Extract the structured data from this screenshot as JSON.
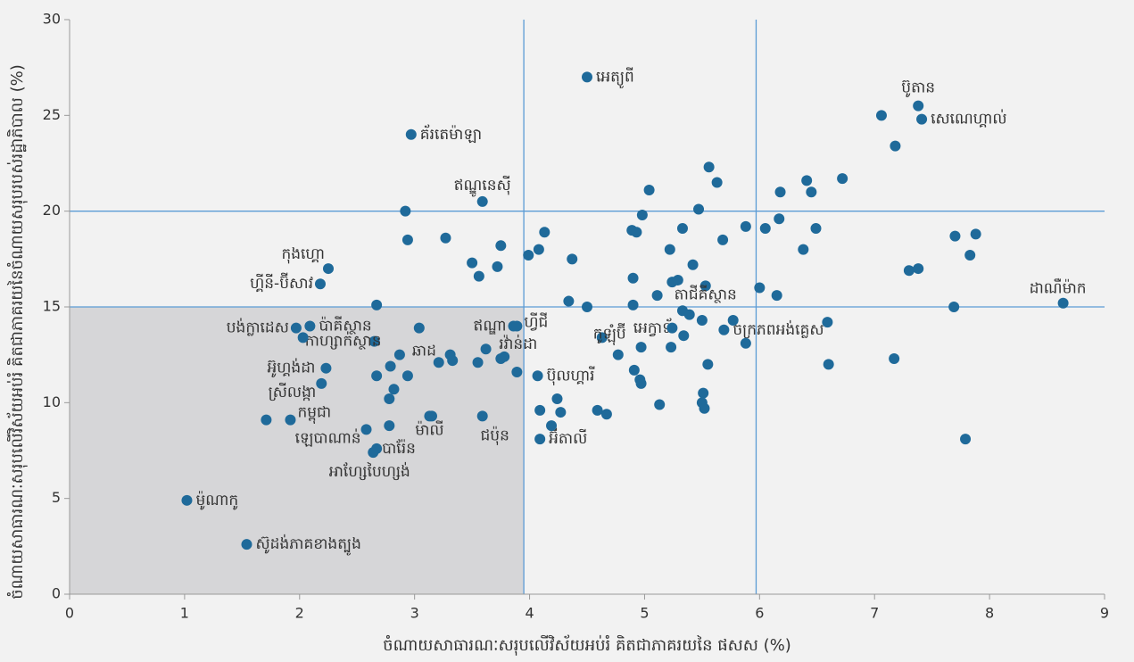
{
  "chart_data": {
    "type": "scatter",
    "x_label": "ចំណាយសាធារណៈសរុបលើវិស័យអប់រំ គិតជាភាគរយនៃ ផសស (%)",
    "y_label": "ចំណាយសាធារណៈសរុបលើវិស័យអប់រំ គិតជាភាគរយនៃចំណាយសរុបរបស់រដ្ឋាភិបាល (%)",
    "xlim": [
      0,
      9
    ],
    "ylim": [
      0,
      30
    ],
    "xticks": [
      0,
      1,
      2,
      3,
      4,
      5,
      6,
      7,
      8,
      9
    ],
    "yticks": [
      0,
      5,
      10,
      15,
      20,
      25,
      30
    ],
    "reference_lines": {
      "x": [
        3.95,
        5.97
      ],
      "y": [
        15,
        20
      ]
    },
    "color": "#1f6a9a",
    "shade_color": "#d6d6d8",
    "line_color": "#5b9bd5",
    "series": [
      {
        "name": null,
        "color": "#1f6a9a",
        "x": [
          4.5,
          7.38,
          7.41,
          2.97,
          3.59,
          2.25,
          2.18,
          8.64,
          5.53,
          1.97,
          2.09,
          3.86,
          3.89,
          4.63,
          5.34,
          5.69,
          2.87,
          2.65,
          3.78,
          2.23,
          2.19,
          4.07,
          1.92,
          2.58,
          3.13,
          3.59,
          4.09,
          2.67,
          2.64,
          1.02,
          1.54,
          2.92,
          2.94,
          3.27,
          3.5,
          3.56,
          3.72,
          3.75,
          3.99,
          4.08,
          4.13,
          4.37,
          2.67,
          3.04,
          3.31,
          3.21,
          3.33,
          3.55,
          3.75,
          3.62,
          3.89,
          4.34,
          4.5,
          2.03,
          2.79,
          2.67,
          2.94,
          2.82,
          2.78,
          1.71,
          2.78,
          3.15,
          4.09,
          4.19,
          4.24,
          4.27,
          4.59,
          4.67,
          4.77,
          4.9,
          4.9,
          4.89,
          4.93,
          4.98,
          5.04,
          4.97,
          4.91,
          4.96,
          4.97,
          5.11,
          5.22,
          5.24,
          5.29,
          5.33,
          5.56,
          5.63,
          5.47,
          5.42,
          5.68,
          5.33,
          5.39,
          5.5,
          5.24,
          5.23,
          5.13,
          5.51,
          5.5,
          5.52,
          5.55,
          5.77,
          5.88,
          6.0,
          5.88,
          6.05,
          6.18,
          6.17,
          6.15,
          6.41,
          6.45,
          6.49,
          6.38,
          6.72,
          6.59,
          6.6,
          7.06,
          7.18,
          7.17,
          7.3,
          7.38,
          7.7,
          7.88,
          7.83,
          7.69,
          7.79
        ],
        "y": [
          27.0,
          25.5,
          24.8,
          24.0,
          20.5,
          17.0,
          16.2,
          15.2,
          16.1,
          13.9,
          14.0,
          14.0,
          14.0,
          13.4,
          13.5,
          13.8,
          12.5,
          13.2,
          12.4,
          11.8,
          11.0,
          11.4,
          9.1,
          8.6,
          9.3,
          9.3,
          8.1,
          7.6,
          7.4,
          4.9,
          2.6,
          20.0,
          18.5,
          18.6,
          17.3,
          16.6,
          17.1,
          18.2,
          17.7,
          18.0,
          18.9,
          17.5,
          15.1,
          13.9,
          12.5,
          12.1,
          12.2,
          12.1,
          12.3,
          12.8,
          11.6,
          15.3,
          15.0,
          13.4,
          11.9,
          11.4,
          11.4,
          10.7,
          10.2,
          9.1,
          8.8,
          9.3,
          9.6,
          8.8,
          10.2,
          9.5,
          9.6,
          9.4,
          12.5,
          15.1,
          16.5,
          19.0,
          18.9,
          19.8,
          21.1,
          12.9,
          11.7,
          11.2,
          11.0,
          15.6,
          18.0,
          16.3,
          16.4,
          19.1,
          22.3,
          21.5,
          20.1,
          17.2,
          18.5,
          14.8,
          14.6,
          14.3,
          13.9,
          12.9,
          9.9,
          10.5,
          10.0,
          9.7,
          12.0,
          14.3,
          13.1,
          16.0,
          19.2,
          19.1,
          21.0,
          19.6,
          15.6,
          21.6,
          21.0,
          19.1,
          18.0,
          21.7,
          14.2,
          12.0,
          25.0,
          23.4,
          12.3,
          16.9,
          17.0,
          18.7,
          18.8,
          17.7,
          15.0,
          8.1
        ],
        "labels": [
          "អេត្យូពី",
          "ប៊ូតាន",
          "សេណេហ្គាល់",
          "គ័រតេម៉ាឡា",
          "ឥណ្ឌូនេស៊ី",
          "កុងហ្គោ",
          "ហ្គីនី-ប៊ីសាវ",
          "ដាណឺម៉ាក",
          "តាជីគីស្ថាន",
          "បង់ក្លាដេស",
          "ប៉ាគីស្ថាន",
          "ឥណ្ឌា",
          "ហ្វីជី",
          "កូឡុំប៊ី",
          "អេក្វាទ័រ",
          "ចក្រភពអង់គ្លេស",
          "ឆាដ",
          "កាហ្សាក់ស្ថាន",
          "រវ៉ាន់ដា",
          "អ៊ូហ្គង់ដា",
          "ស្រីលង្កា",
          "ប៊ុលហ្គារី",
          "កម្ពុជា",
          "ឡេបាណាន់",
          "ម៉ាលី",
          "ជប៉ុន",
          "អ៊ីតាលី",
          "បារ៉ែន",
          "អាហ្សែបៃហ្សង់",
          "ម៉ូណាកូ",
          "ស៊ូដង់ភាគខាងត្បូង",
          null,
          null,
          null,
          null,
          null,
          null,
          null,
          null,
          null,
          null,
          null,
          null,
          null,
          null,
          null,
          null,
          null,
          null,
          null,
          null,
          null,
          null,
          null,
          null,
          null,
          null,
          null,
          null,
          null,
          null,
          null,
          null,
          null,
          null,
          null,
          null,
          null,
          null,
          null,
          null,
          null,
          null,
          null,
          null,
          null,
          null,
          null,
          null,
          null,
          null,
          null,
          null,
          null,
          null,
          null,
          null,
          null,
          null,
          null,
          null,
          null,
          null,
          null,
          null,
          null,
          null,
          null,
          null,
          null,
          null,
          null,
          null,
          null,
          null,
          null,
          null,
          null,
          null,
          null,
          null,
          null,
          null,
          null,
          null,
          null,
          null,
          null,
          null,
          null,
          null,
          null,
          null,
          null,
          null
        ]
      }
    ]
  }
}
